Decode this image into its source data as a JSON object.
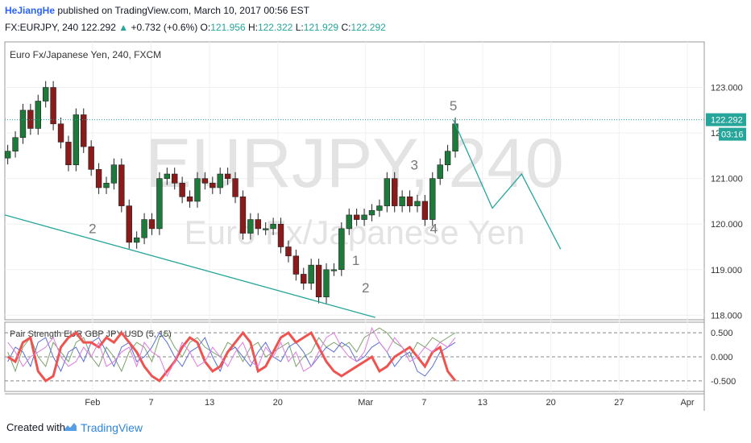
{
  "header": {
    "author": "HeJiangHe",
    "published": "published on TradingView.com, March 10, 2017 00:56 EST",
    "symbol": "FX:EURJPY, 240",
    "last_price": "122.292",
    "change": "+0.732 (+0.6%)",
    "open_label": "O:",
    "open": "121.956",
    "high_label": "H:",
    "high": "122.322",
    "low_label": "L:",
    "low": "121.929",
    "close_label": "C:",
    "close": "122.292"
  },
  "footer": {
    "created": "Created with",
    "brand": "TradingView"
  },
  "chart_data": [
    {
      "type": "candlestick",
      "title": "Euro Fx/Japanese Yen, 240, FXCM",
      "watermark": "EURJPY, 240",
      "watermark_sub": "Euro Fx/Japanese Yen",
      "x_ticks": [
        "Feb",
        "7",
        "13",
        "20",
        "Mar",
        "7",
        "13",
        "20",
        "27",
        "Apr"
      ],
      "y_ticks": [
        "123.000",
        "122.000",
        "121.000",
        "120.000",
        "119.000",
        "118.000"
      ],
      "ylim": [
        117.9,
        124.0
      ],
      "last_price_label": "122.292",
      "countdown_label": "03:16",
      "series": [
        {
          "name": "close",
          "values": [
            121.6,
            121.9,
            122.5,
            122.1,
            122.7,
            123.0,
            122.2,
            121.8,
            121.3,
            122.4,
            121.7,
            121.2,
            120.8,
            120.9,
            121.3,
            120.4,
            119.6,
            119.7,
            120.1,
            119.9,
            121.0,
            121.1,
            120.9,
            120.6,
            120.5,
            121.0,
            120.9,
            120.8,
            121.1,
            121.0,
            120.6,
            119.8,
            120.1,
            119.9,
            119.9,
            120.0,
            119.5,
            119.3,
            118.9,
            118.7,
            119.1,
            118.4,
            119.0,
            119.0,
            119.9,
            120.2,
            120.1,
            120.2,
            120.3,
            120.4,
            121.0,
            120.4,
            120.6,
            120.4,
            120.5,
            120.1,
            121.0,
            121.3,
            121.6,
            122.2
          ]
        }
      ],
      "wave_labels": [
        {
          "text": "2",
          "x": "Feb 1",
          "y": 119.8
        },
        {
          "text": "1",
          "x": "Feb 28",
          "y": 119.1
        },
        {
          "text": "2",
          "x": "Mar 1",
          "y": 118.5
        },
        {
          "text": "3",
          "x": "Mar 6",
          "y": 121.2
        },
        {
          "text": "4",
          "x": "Mar 8",
          "y": 119.8
        },
        {
          "text": "5",
          "x": "Mar 10",
          "y": 122.5
        }
      ],
      "trendline": {
        "from": {
          "x": "Jan 23",
          "y": 120.2
        },
        "to": {
          "x": "Mar 2",
          "y": 117.95
        }
      },
      "projection": [
        {
          "x": "Mar 10",
          "y": 122.29
        },
        {
          "x": "Mar 14",
          "y": 120.35
        },
        {
          "x": "Mar 17",
          "y": 121.1
        },
        {
          "x": "Mar 21",
          "y": 119.45
        }
      ]
    },
    {
      "type": "line",
      "title": "Pair Strength EUR GBP JPY USD (5, 15)",
      "y_ticks": [
        "0.500",
        "0.000",
        "-0.500"
      ],
      "ylim": [
        -0.72,
        0.72
      ],
      "series": [
        {
          "name": "EUR",
          "color": "#7aa36a",
          "values": [
            0.1,
            -0.3,
            0.2,
            0.4,
            0.0,
            -0.2,
            0.3,
            0.1,
            -0.1,
            0.3,
            0.4,
            0.0,
            -0.2,
            0.2,
            0.0,
            -0.3,
            0.1,
            0.3,
            0.2,
            -0.1,
            0.4,
            0.5,
            0.2,
            0.0,
            0.3,
            0.4,
            0.2,
            0.1,
            0.0,
            0.3,
            0.2,
            -0.1,
            0.2,
            0.3,
            0.0,
            0.1,
            0.2,
            0.3,
            -0.2,
            0.0,
            0.1,
            0.4,
            0.2,
            0.3,
            0.2,
            0.3,
            0.1,
            0.4,
            0.5,
            0.6,
            0.5,
            0.3,
            0.2,
            0.0,
            0.3,
            0.2,
            0.4,
            0.3,
            0.4,
            0.5
          ]
        },
        {
          "name": "GBP",
          "color": "#5b6fd6",
          "values": [
            -0.1,
            0.2,
            0.1,
            -0.2,
            0.3,
            0.4,
            0.0,
            -0.3,
            0.1,
            0.2,
            -0.1,
            0.3,
            0.4,
            0.1,
            -0.2,
            0.2,
            0.3,
            -0.1,
            0.0,
            0.2,
            0.5,
            0.3,
            0.0,
            -0.2,
            0.1,
            0.2,
            0.4,
            0.0,
            -0.3,
            0.1,
            0.2,
            0.0,
            -0.2,
            0.1,
            0.3,
            0.0,
            -0.1,
            0.2,
            0.3,
            0.1,
            -0.2,
            0.0,
            0.2,
            0.1,
            0.3,
            0.2,
            -0.1,
            0.0,
            0.2,
            0.3,
            0.1,
            -0.2,
            0.0,
            0.1,
            -0.3,
            -0.4,
            -0.2,
            0.1,
            0.2,
            0.3
          ]
        },
        {
          "name": "JPY",
          "color": "#ef5350",
          "values": [
            0.0,
            -0.1,
            0.3,
            0.4,
            -0.3,
            -0.5,
            -0.4,
            0.2,
            0.4,
            0.5,
            0.3,
            0.3,
            0.2,
            0.4,
            0.3,
            0.5,
            0.3,
            0.1,
            -0.2,
            -0.4,
            -0.5,
            -0.3,
            -0.1,
            0.2,
            0.4,
            0.3,
            -0.1,
            -0.3,
            -0.2,
            0.1,
            0.3,
            0.5,
            0.3,
            -0.3,
            -0.2,
            0.1,
            0.4,
            0.5,
            0.3,
            0.4,
            0.5,
            0.2,
            -0.1,
            -0.3,
            -0.4,
            -0.3,
            -0.2,
            -0.1,
            0.0,
            -0.3,
            -0.2,
            0.0,
            0.1,
            0.2,
            0.0,
            -0.2,
            0.1,
            0.2,
            -0.3,
            -0.5
          ]
        },
        {
          "name": "USD",
          "color": "#e07be0",
          "values": [
            0.3,
            0.1,
            -0.2,
            0.0,
            0.1,
            0.2,
            0.4,
            0.0,
            -0.2,
            -0.1,
            0.2,
            0.0,
            0.3,
            -0.2,
            -0.1,
            0.1,
            0.2,
            -0.2,
            0.3,
            0.1,
            0.0,
            -0.4,
            -0.1,
            0.3,
            0.1,
            -0.2,
            -0.1,
            0.2,
            0.0,
            -0.2,
            0.1,
            0.3,
            -0.1,
            -0.2,
            0.2,
            0.0,
            0.3,
            -0.1,
            0.1,
            -0.3,
            -0.2,
            0.1,
            0.4,
            0.5,
            0.2,
            0.0,
            -0.1,
            0.1,
            0.6,
            0.3,
            0.1,
            0.4,
            0.2,
            -0.1,
            0.0,
            0.2,
            0.1,
            0.3,
            0.2,
            0.4
          ]
        }
      ]
    }
  ]
}
